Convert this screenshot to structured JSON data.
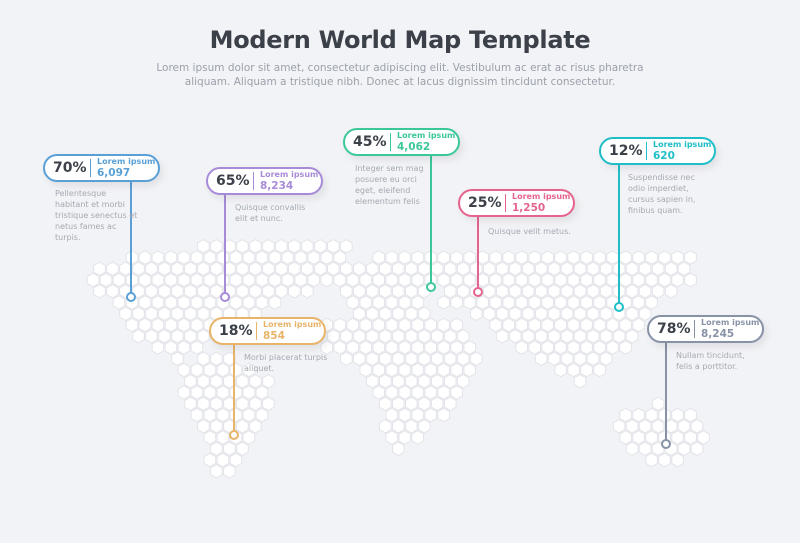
{
  "header": {
    "title": "Modern World Map Template",
    "subtitle": "Lorem ipsum dolor sit amet, consectetur adipiscing elit. Vestibulum ac erat ac risus pharetra aliquam. Aliquam a tristique nibh. Donec at lacus dignissim tincidunt consectetur."
  },
  "callouts": [
    {
      "percent": "70%",
      "label": "Lorem ipsum",
      "value": "6,097",
      "description": "Pellentesque habitant et morbi tristique senectus et netus fames ac turpis.",
      "color": "#5aa0d6"
    },
    {
      "percent": "65%",
      "label": "Lorem ipsum",
      "value": "8,234",
      "description": "Quisque convallis elit et nunc.",
      "color": "#a78bd8"
    },
    {
      "percent": "45%",
      "label": "Lorem ipsum",
      "value": "4,062",
      "description": "Integer sem mag posuere eu orci eget, eleifend elementum felis",
      "color": "#3cc79a"
    },
    {
      "percent": "25%",
      "label": "Lorem ipsum",
      "value": "1,250",
      "description": "Quisque velit metus.",
      "color": "#e5648e"
    },
    {
      "percent": "12%",
      "label": "Lorem ipsum",
      "value": "620",
      "description": "Suspendisse nec odio imperdiet, cursus sapien in, finibus quam.",
      "color": "#20bfc7"
    },
    {
      "percent": "18%",
      "label": "Lorem ipsum",
      "value": "854",
      "description": "Morbi placerat turpis aliquet.",
      "color": "#e8b46a"
    },
    {
      "percent": "78%",
      "label": "Lorem ipsum",
      "value": "8,245",
      "description": "Nullam tincidunt, felis a porttitor.",
      "color": "#8892a6"
    }
  ],
  "colors": {
    "background": "#f2f3f6",
    "hex_fill": "#ffffff",
    "hex_stroke": "#e2e4e9",
    "title": "#3b4049"
  }
}
